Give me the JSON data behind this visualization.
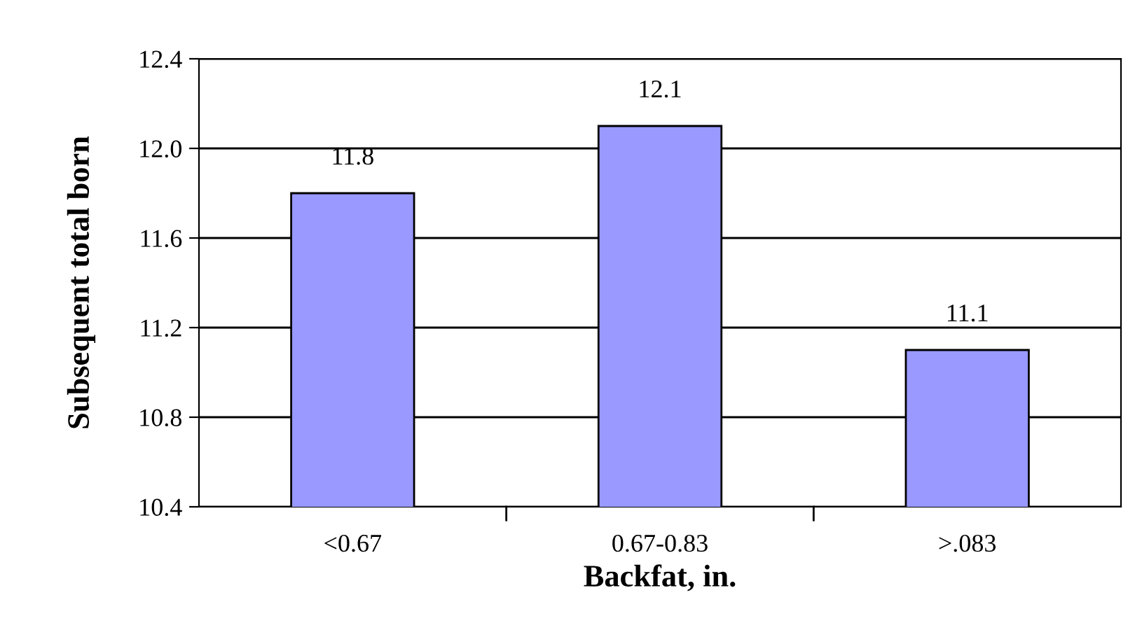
{
  "chart_data": {
    "type": "bar",
    "xlabel": "Backfat, in.",
    "ylabel": "Subsequent total born",
    "categories": [
      "<0.67",
      "0.67-0.83",
      ">.083"
    ],
    "values": [
      11.8,
      12.1,
      11.1
    ],
    "color": "#9999ff",
    "ylim": [
      10.4,
      12.4
    ],
    "yticks": [
      "10.4",
      "10.8",
      "11.2",
      "11.6",
      "12.0",
      "12.4"
    ],
    "grid": "y",
    "data_labels": true
  }
}
